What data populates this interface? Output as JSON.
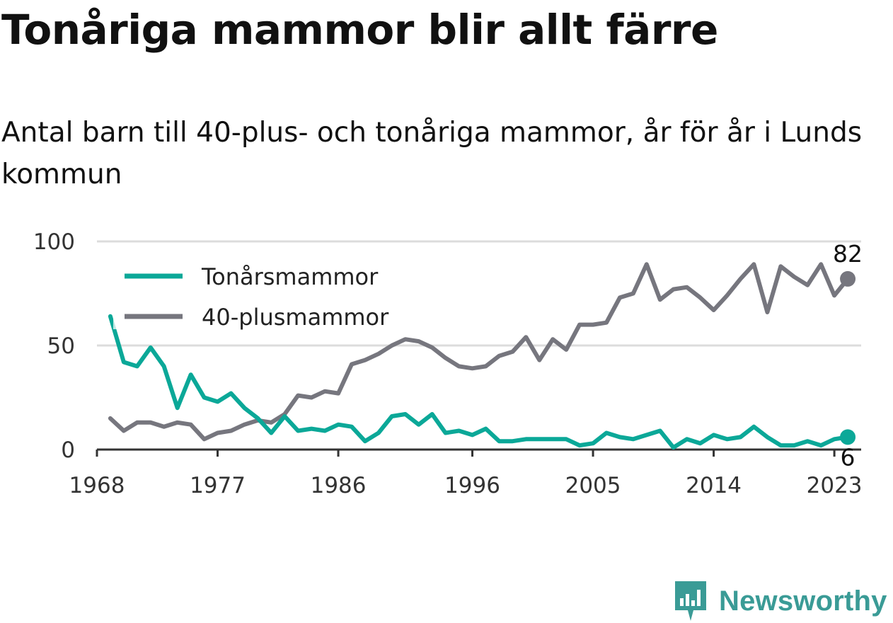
{
  "title": "Tonåriga mammor blir allt färre",
  "subtitle": "Antal barn till 40-plus- och tonåriga mammor, år för år i Lunds kommun",
  "brand": {
    "name": "Newsworthy",
    "color": "#3a9b96"
  },
  "chart_data": {
    "type": "line",
    "x": [
      1969,
      1970,
      1971,
      1972,
      1973,
      1974,
      1975,
      1976,
      1977,
      1978,
      1979,
      1980,
      1981,
      1982,
      1983,
      1984,
      1985,
      1986,
      1987,
      1988,
      1989,
      1990,
      1991,
      1992,
      1993,
      1994,
      1995,
      1996,
      1997,
      1998,
      1999,
      2000,
      2001,
      2002,
      2003,
      2004,
      2005,
      2006,
      2007,
      2008,
      2009,
      2010,
      2011,
      2012,
      2013,
      2014,
      2015,
      2016,
      2017,
      2018,
      2019,
      2020,
      2021,
      2022,
      2023,
      2024
    ],
    "x_ticks": [
      "1968",
      "1977",
      "1986",
      "1996",
      "2005",
      "2014",
      "2023"
    ],
    "y_ticks": [
      "0",
      "50",
      "100"
    ],
    "ylim": [
      0,
      100
    ],
    "xlabel": "",
    "ylabel": "",
    "grid": true,
    "legend_position": "top-left",
    "series": [
      {
        "name": "Tonårsmammor",
        "color": "#0ba898",
        "end_label": "6",
        "values": [
          64,
          42,
          40,
          49,
          40,
          20,
          36,
          25,
          23,
          27,
          20,
          15,
          8,
          16,
          9,
          10,
          9,
          12,
          11,
          4,
          8,
          16,
          17,
          12,
          17,
          8,
          9,
          7,
          10,
          4,
          4,
          5,
          5,
          5,
          5,
          2,
          3,
          8,
          6,
          5,
          7,
          9,
          1,
          5,
          3,
          7,
          5,
          6,
          11,
          6,
          2,
          2,
          4,
          2,
          5,
          6
        ]
      },
      {
        "name": "40-plusmammor",
        "color": "#76767e",
        "end_label": "82",
        "values": [
          15,
          9,
          13,
          13,
          11,
          13,
          12,
          5,
          8,
          9,
          12,
          14,
          13,
          17,
          26,
          25,
          28,
          27,
          41,
          43,
          46,
          50,
          53,
          52,
          49,
          44,
          40,
          39,
          40,
          45,
          47,
          54,
          43,
          53,
          48,
          60,
          60,
          61,
          73,
          75,
          89,
          72,
          77,
          78,
          73,
          67,
          74,
          82,
          89,
          66,
          88,
          83,
          79,
          89,
          74,
          82
        ]
      }
    ]
  }
}
